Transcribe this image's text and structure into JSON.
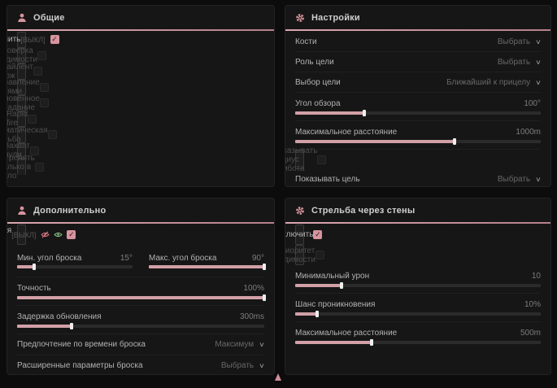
{
  "colors": {
    "accent": "#d6949d",
    "slider_fill": "#d2a0a7",
    "icon_red": "#e07a85",
    "icon_green": "#8ec88e",
    "panel_bg": "#161616",
    "page_bg": "#0c0c0c"
  },
  "ui": {
    "check": "✓",
    "chevron": "∨"
  },
  "panels": {
    "general": {
      "title": "Общие",
      "icon": "person-icon",
      "rows": [
        {
          "type": "checkbox",
          "label": "Включить",
          "tag": "[ВЫКЛ]",
          "checked": true,
          "enabled": true
        },
        {
          "type": "checkbox",
          "label": "Проверка видимости",
          "checked": false,
          "enabled": false
        },
        {
          "type": "checkbox",
          "label": "Сайлент нож",
          "checked": false,
          "enabled": false
        },
        {
          "type": "checkbox",
          "label": "Управление пулями",
          "checked": false,
          "enabled": false
        },
        {
          "type": "checkbox",
          "label": "Мгновенное попадание",
          "checked": false,
          "enabled": false
        },
        {
          "type": "checkbox",
          "label": "Rapid fire",
          "checked": false,
          "enabled": false
        },
        {
          "type": "checkbox",
          "label": "Автоматическая стрельба",
          "checked": false,
          "enabled": false
        },
        {
          "type": "checkbox",
          "label": "Захват пули",
          "checked": false,
          "enabled": false
        },
        {
          "type": "checkbox",
          "label": "Стрелять только в тело",
          "checked": false,
          "enabled": false
        }
      ]
    },
    "settings": {
      "title": "Настройки",
      "icon": "gear-icon",
      "rows": [
        {
          "type": "dropdown",
          "label": "Кости",
          "value": "Выбрать",
          "enabled": true
        },
        {
          "type": "dropdown",
          "label": "Роль цели",
          "value": "Выбрать",
          "enabled": true
        },
        {
          "type": "dropdown",
          "label": "Выбор цели",
          "value": "Ближайший к прицелу",
          "enabled": true
        },
        {
          "type": "slider",
          "label": "Угол обзора",
          "value": "100°",
          "fill": 28
        },
        {
          "type": "slider",
          "label": "Максимальное расстояние",
          "value": "1000m",
          "fill": 65
        },
        {
          "type": "checkbox",
          "label": "Показывать радиус аимбота",
          "checked": false,
          "enabled": false
        },
        {
          "type": "dropdown",
          "label": "Показывать цель",
          "value": "Выбрать",
          "enabled": true
        }
      ]
    },
    "additional": {
      "title": "Дополнительно",
      "icon": "person-icon",
      "rows": [
        {
          "type": "checkbox",
          "label": "Магическая граната",
          "tag": "[ВЫКЛ]",
          "icons": [
            "eye-off-icon",
            "eye-on-icon"
          ],
          "checked": true,
          "enabled": true
        },
        {
          "type": "slider-pair",
          "left": {
            "label": "Мин. угол броска",
            "value": "15°",
            "fill": 15
          },
          "right": {
            "label": "Макс. угол броска",
            "value": "90°",
            "fill": 100
          }
        },
        {
          "type": "slider",
          "label": "Точность",
          "value": "100%",
          "fill": 100
        },
        {
          "type": "slider",
          "label": "Задержка обновления",
          "value": "300ms",
          "fill": 22
        },
        {
          "type": "dropdown",
          "label": "Предпочтение по времени броска",
          "value": "Максимум",
          "enabled": true
        },
        {
          "type": "dropdown",
          "label": "Расширенные параметры броска",
          "value": "Выбрать",
          "enabled": true
        }
      ]
    },
    "walls": {
      "title": "Стрельба через стены",
      "icon": "gear-icon",
      "rows": [
        {
          "type": "checkbox",
          "label": "Включить",
          "checked": true,
          "enabled": true
        },
        {
          "type": "checkbox",
          "label": "Приоритет видимости",
          "checked": false,
          "enabled": false
        },
        {
          "type": "slider",
          "label": "Минимальный урон",
          "value": "10",
          "fill": 19
        },
        {
          "type": "slider",
          "label": "Шанс проникновения",
          "value": "10%",
          "fill": 9
        },
        {
          "type": "slider",
          "label": "Максимальное расстояние",
          "value": "500m",
          "fill": 31
        }
      ]
    }
  }
}
